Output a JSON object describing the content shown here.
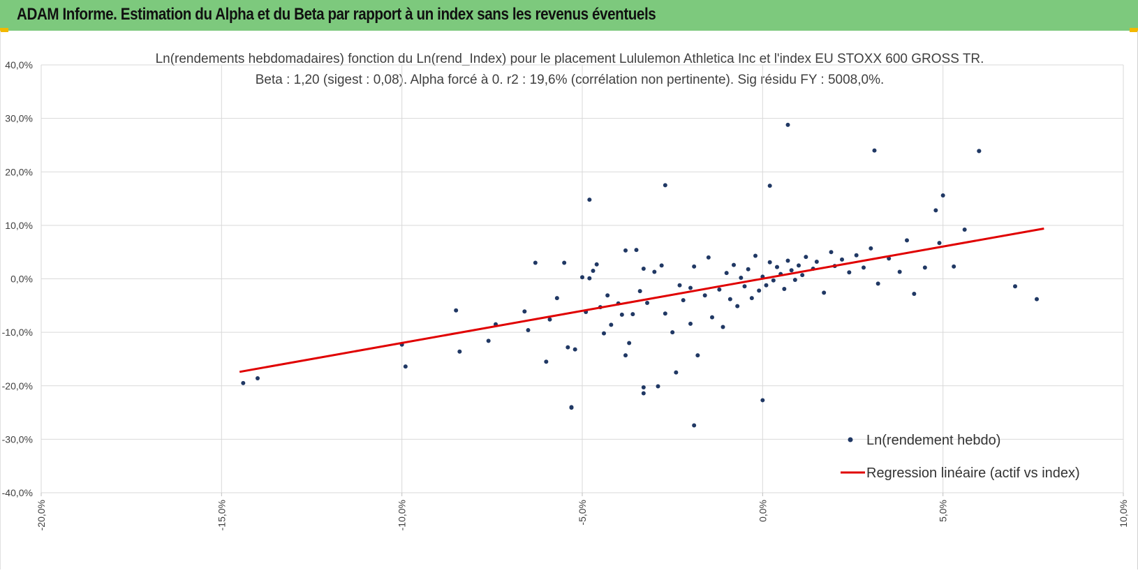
{
  "header": {
    "title": "ADAM Informe. Estimation du Alpha et du Beta par rapport à un index sans les revenus éventuels"
  },
  "colors": {
    "header_bg": "#7dc97d",
    "scatter": "#203864",
    "regression": "#e00000",
    "grid": "#d9d9d9"
  },
  "chart_data": {
    "type": "scatter",
    "title_line1": "Ln(rendements hebdomadaires) fonction du Ln(rend_Index) pour le placement Lululemon Athletica Inc et l'index EU STOXX 600 GROSS TR.",
    "title_line2": "Beta : 1,20 (sigest : 0,08). Alpha forcé à 0. r2 : 19,6% (corrélation non pertinente). Sig résidu FY : 5008,0%.",
    "xlim": [
      -20,
      10
    ],
    "ylim": [
      -40,
      40
    ],
    "x_ticks": [
      -20,
      -15,
      -10,
      -5,
      0,
      5,
      10
    ],
    "y_ticks": [
      40,
      30,
      20,
      10,
      0,
      -10,
      -20,
      -30,
      -40
    ],
    "x_tick_labels": [
      "-20,0%",
      "-15,0%",
      "-10,0%",
      "-5,0%",
      "0,0%",
      "5,0%",
      "10,0%"
    ],
    "y_tick_labels": [
      "40,0%",
      "30,0%",
      "20,0%",
      "10,0%",
      "0,0%",
      "-10,0%",
      "-20,0%",
      "-30,0%",
      "-40,0%"
    ],
    "grid": true,
    "legend_position": "bottom-right",
    "series": [
      {
        "name": "Ln(rendement hebdo)",
        "kind": "scatter",
        "x": [
          -14.4,
          -14.0,
          -10.0,
          -9.9,
          -8.5,
          -8.4,
          -7.6,
          -7.4,
          -6.6,
          -6.5,
          -6.3,
          -6.0,
          -5.9,
          -5.7,
          -5.5,
          -5.4,
          -5.3,
          -5.2,
          -5.0,
          -4.9,
          -4.8,
          -4.7,
          -4.6,
          -4.5,
          -4.4,
          -4.3,
          -4.2,
          -4.0,
          -3.9,
          -3.8,
          -3.8,
          -3.7,
          -3.6,
          -3.5,
          -3.4,
          -3.3,
          -3.3,
          -3.2,
          -3.0,
          -2.8,
          -2.7,
          -2.5,
          -2.4,
          -2.3,
          -2.2,
          -2.0,
          -2.0,
          -1.9,
          -1.8,
          -1.6,
          -1.5,
          -1.4,
          -1.2,
          -1.1,
          -1.0,
          -0.9,
          -0.8,
          -0.7,
          -0.6,
          -0.5,
          -0.4,
          -0.3,
          -0.2,
          -0.1,
          0.0,
          0.1,
          0.2,
          0.3,
          0.4,
          0.5,
          0.6,
          0.7,
          0.8,
          0.9,
          1.0,
          1.1,
          1.2,
          1.4,
          1.5,
          1.7,
          1.9,
          2.0,
          2.2,
          2.4,
          2.6,
          2.8,
          3.0,
          3.2,
          3.5,
          3.8,
          4.0,
          4.2,
          4.5,
          4.8,
          5.0,
          5.3,
          5.6,
          6.0,
          7.0,
          7.6,
          0.7,
          3.1,
          6.0,
          -2.7,
          0.2,
          -4.8,
          4.9,
          -1.9,
          -5.3,
          0.0,
          -3.3,
          -2.9
        ],
        "y": [
          -19.5,
          -18.6,
          -12.3,
          -16.4,
          -5.9,
          -13.6,
          -11.6,
          -8.5,
          -6.1,
          -9.6,
          3.0,
          -15.5,
          -7.6,
          -3.6,
          3.0,
          -12.8,
          -24.0,
          -13.2,
          0.3,
          -6.2,
          0.1,
          1.5,
          2.7,
          -5.3,
          -10.2,
          -3.1,
          -8.6,
          -4.6,
          -6.7,
          5.3,
          -14.3,
          -12.0,
          -6.6,
          5.4,
          -2.3,
          1.9,
          -21.4,
          -4.5,
          1.3,
          2.5,
          -6.5,
          -10.0,
          -17.5,
          -1.2,
          -4.0,
          -1.7,
          -8.4,
          2.3,
          -14.3,
          -3.1,
          4.0,
          -7.2,
          -2.0,
          -9.0,
          1.1,
          -3.8,
          2.6,
          -5.1,
          0.2,
          -1.4,
          1.8,
          -3.6,
          4.3,
          -2.2,
          0.4,
          -1.2,
          3.1,
          -0.3,
          2.2,
          0.9,
          -1.9,
          3.4,
          1.6,
          -0.2,
          2.5,
          0.7,
          4.1,
          1.9,
          3.2,
          -2.6,
          5.0,
          2.4,
          3.6,
          1.2,
          4.4,
          2.1,
          5.7,
          -0.9,
          3.8,
          1.3,
          7.2,
          -2.8,
          2.1,
          12.8,
          15.6,
          2.3,
          9.2,
          23.9,
          -1.4,
          -3.8,
          28.8,
          24.0,
          23.9,
          17.5,
          17.4,
          14.8,
          6.7,
          -27.4,
          -24.1,
          -22.7,
          -20.3,
          -20.1
        ]
      },
      {
        "name": "Regression linéaire (actif vs index)",
        "kind": "line",
        "x": [
          -14.5,
          7.8
        ],
        "y": [
          -17.4,
          9.4
        ]
      }
    ]
  }
}
